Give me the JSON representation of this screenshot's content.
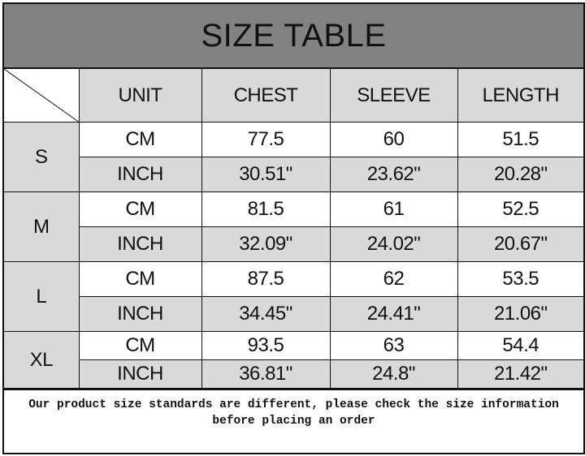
{
  "title": "SIZE TABLE",
  "columns": [
    "UNIT",
    "CHEST",
    "SLEEVE",
    "LENGTH"
  ],
  "sizes": [
    {
      "size": "S",
      "rows": [
        [
          "CM",
          "77.5",
          "60",
          "51.5"
        ],
        [
          "INCH",
          "30.51\"",
          "23.62\"",
          "20.28\""
        ]
      ]
    },
    {
      "size": "M",
      "rows": [
        [
          "CM",
          "81.5",
          "61",
          "52.5"
        ],
        [
          "INCH",
          "32.09\"",
          "24.02\"",
          "20.67\""
        ]
      ]
    },
    {
      "size": "L",
      "rows": [
        [
          "CM",
          "87.5",
          "62",
          "53.5"
        ],
        [
          "INCH",
          "34.45\"",
          "24.41\"",
          "21.06\""
        ]
      ]
    },
    {
      "size": "XL",
      "rows": [
        [
          "CM",
          "93.5",
          "63",
          "54.4"
        ],
        [
          "INCH",
          "36.81\"",
          "24.8\"",
          "21.42\""
        ]
      ]
    }
  ],
  "footer": {
    "line1": "Our product size standards are different, please check the size information",
    "line2": "before placing an order"
  },
  "colors": {
    "title_bg": "#828282",
    "cell_gray": "#d9d9d9",
    "cell_white": "#ffffff"
  }
}
